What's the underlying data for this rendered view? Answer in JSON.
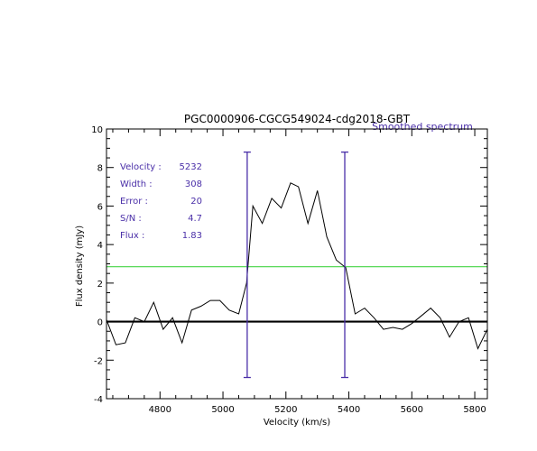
{
  "chart_data": {
    "type": "line",
    "title": "PGC0000906-CGCG549024-cdg2018-GBT",
    "legend_label": "Smoothed spectrum",
    "xlabel": "Velocity (km/s)",
    "ylabel": "Flux density (mJy)",
    "xlim": [
      4630,
      5840
    ],
    "ylim": [
      -4,
      10
    ],
    "x_ticks": [
      4800,
      5000,
      5200,
      5400,
      5600,
      5800
    ],
    "y_ticks": [
      -4,
      -2,
      0,
      2,
      4,
      6,
      8,
      10
    ],
    "series": [
      {
        "x": [
          4630,
          4660,
          4690,
          4720,
          4750,
          4780,
          4810,
          4840,
          4870,
          4900,
          4930,
          4960,
          4990,
          5020,
          5050,
          5075,
          5095,
          5125,
          5155,
          5185,
          5215,
          5240,
          5270,
          5300,
          5330,
          5360,
          5390,
          5420,
          5450,
          5480,
          5510,
          5540,
          5570,
          5600,
          5630,
          5660,
          5690,
          5720,
          5750,
          5780,
          5810,
          5840
        ],
        "y": [
          0.1,
          -1.2,
          -1.1,
          0.2,
          0.0,
          1.0,
          -0.4,
          0.2,
          -1.1,
          0.6,
          0.8,
          1.1,
          1.1,
          0.6,
          0.4,
          2.0,
          6.0,
          5.1,
          6.4,
          5.9,
          7.2,
          7.0,
          5.1,
          6.8,
          4.4,
          3.2,
          2.8,
          0.4,
          0.7,
          0.2,
          -0.4,
          -0.3,
          -0.4,
          -0.1,
          0.3,
          0.7,
          0.2,
          -0.8,
          0.0,
          0.2,
          -1.4,
          -0.4
        ]
      }
    ],
    "zero_line": 0,
    "threshold_line": 2.85,
    "markers": [
      5077,
      5387
    ],
    "marker_yrange": [
      -2.9,
      8.8
    ],
    "grid": false,
    "annotations": [
      {
        "label": "Velocity :",
        "value": "5232"
      },
      {
        "label": "Width :",
        "value": "308"
      },
      {
        "label": "Error :",
        "value": "20"
      },
      {
        "label": "S/N :",
        "value": "4.7"
      },
      {
        "label": "Flux :",
        "value": "1.83"
      }
    ],
    "colors": {
      "spectrum": "#000000",
      "zero_line": "#000000",
      "threshold": "#44d444",
      "markers": "#4a2fa8",
      "annotation": "#4a2fa8",
      "legend": "#4a2fa8"
    }
  }
}
